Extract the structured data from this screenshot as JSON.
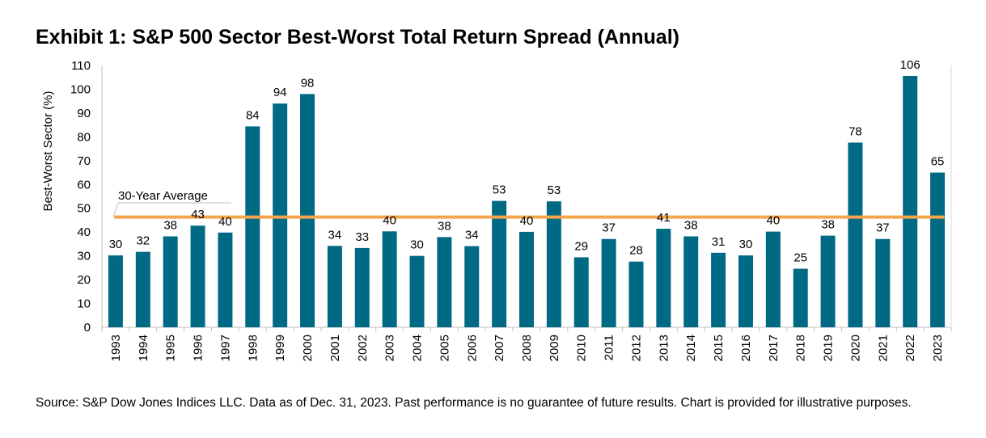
{
  "title": "Exhibit 1: S&P 500 Sector Best-Worst Total Return Spread (Annual)",
  "source": "Source: S&P Dow Jones Indices LLC.  Data as of Dec. 31, 2023.  Past performance is no guarantee of future results.  Chart is provided for illustrative purposes.",
  "colors": {
    "bar": "#006a84",
    "average_line": "#f5a54a"
  },
  "chart_data": {
    "type": "bar",
    "ylabel": "Best-Worst Sector (%)",
    "ylim": [
      0,
      110
    ],
    "yticks": [
      0,
      10,
      20,
      30,
      40,
      50,
      60,
      70,
      80,
      90,
      100,
      110
    ],
    "categories": [
      "1993",
      "1994",
      "1995",
      "1996",
      "1997",
      "1998",
      "1999",
      "2000",
      "2001",
      "2002",
      "2003",
      "2004",
      "2005",
      "2006",
      "2007",
      "2008",
      "2009",
      "2010",
      "2011",
      "2012",
      "2013",
      "2014",
      "2015",
      "2016",
      "2017",
      "2018",
      "2019",
      "2020",
      "2021",
      "2022",
      "2023"
    ],
    "values": [
      30.2,
      31.7,
      38.2,
      42.7,
      39.8,
      84.4,
      94.0,
      98.0,
      34.2,
      33.3,
      40.3,
      30.0,
      37.9,
      34.1,
      53.1,
      40.1,
      52.9,
      29.4,
      37.1,
      27.6,
      41.4,
      38.2,
      31.3,
      30.2,
      40.2,
      24.6,
      38.5,
      77.6,
      37.1,
      105.6,
      65.0
    ],
    "data_labels": [
      "30",
      "32",
      "38",
      "43",
      "40",
      "84",
      "94",
      "98",
      "34",
      "33",
      "40",
      "30",
      "38",
      "34",
      "53",
      "40",
      "53",
      "29",
      "37",
      "28",
      "41",
      "38",
      "31",
      "30",
      "40",
      "25",
      "38",
      "78",
      "37",
      "106",
      "65"
    ],
    "average": {
      "label": "30-Year Average",
      "value": 46.3
    }
  }
}
